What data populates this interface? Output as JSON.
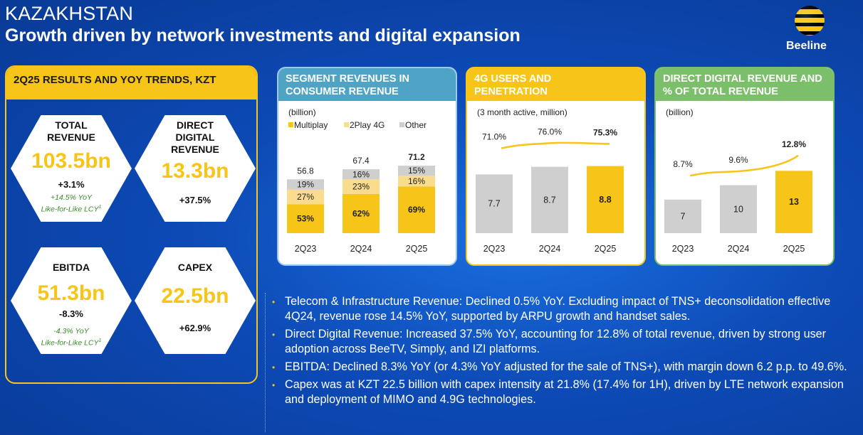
{
  "header": {
    "country": "KAZAKHSTAN",
    "title": "Growth driven by network investments and digital expansion",
    "logo_text": "Beeline"
  },
  "kpi_panel": {
    "title": "2Q25 RESULTS AND YOY TRENDS, KZT",
    "kpis": [
      {
        "label_l1": "TOTAL",
        "label_l2": "REVENUE",
        "label_l3": "",
        "value": "103.5bn",
        "change": "+3.1%",
        "note_l1": "+14.5% YoY",
        "note_l2": "Like-for-Like LCY",
        "note_sup": "1"
      },
      {
        "label_l1": "DIRECT",
        "label_l2": "DIGITAL",
        "label_l3": "REVENUE",
        "value": "13.3bn",
        "change": "+37.5%",
        "note_l1": "",
        "note_l2": "",
        "note_sup": ""
      },
      {
        "label_l1": "EBITDA",
        "label_l2": "",
        "label_l3": "",
        "value": "51.3bn",
        "change": "-8.3%",
        "note_l1": "-4.3% YoY",
        "note_l2": "Like-for-Like LCY",
        "note_sup": "1"
      },
      {
        "label_l1": "CAPEX",
        "label_l2": "",
        "label_l3": "",
        "value": "22.5bn",
        "change": "+62.9%",
        "note_l1": "",
        "note_l2": "",
        "note_sup": ""
      }
    ]
  },
  "colors": {
    "yellow": "#f7c517",
    "light_yellow": "#f9dc8c",
    "gray": "#cfcfcf",
    "teal": "#4fa3c4",
    "green": "#7cbf6a",
    "blue_bg": "#0d4ab6"
  },
  "chart_data": [
    {
      "type": "bar",
      "panel_title_l1": "SEGMENT REVENUES IN",
      "panel_title_l2": "CONSUMER REVENUE",
      "unit_note": "(billion)",
      "categories": [
        "2Q23",
        "2Q24",
        "2Q25"
      ],
      "totals": [
        "56.8",
        "67.4",
        "71.2"
      ],
      "total_values": [
        56.8,
        67.4,
        71.2
      ],
      "series": [
        {
          "name": "Multiplay",
          "values": [
            53,
            62,
            69
          ],
          "labels": [
            "53%",
            "62%",
            "69%"
          ],
          "color": "#f7c517"
        },
        {
          "name": "2Play 4G",
          "values": [
            27,
            23,
            16
          ],
          "labels": [
            "27%",
            "23%",
            "16%"
          ],
          "color": "#f9dc8c"
        },
        {
          "name": "Other",
          "values": [
            19,
            16,
            15
          ],
          "labels": [
            "19%",
            "16%",
            "15%"
          ],
          "color": "#cfcfcf"
        }
      ]
    },
    {
      "type": "bar",
      "panel_title_l1": "4G USERS AND",
      "panel_title_l2": "PENETRATION",
      "unit_note": "(3 month active, million)",
      "categories": [
        "2Q23",
        "2Q24",
        "2Q25"
      ],
      "values": [
        7.7,
        8.7,
        8.8
      ],
      "value_labels": [
        "7.7",
        "8.7",
        "8.8"
      ],
      "line_values": [
        71.0,
        76.0,
        75.3
      ],
      "line_labels": [
        "71.0%",
        "76.0%",
        "75.3%"
      ]
    },
    {
      "type": "bar",
      "panel_title_l1": "DIRECT DIGITAL REVENUE AND",
      "panel_title_l2": "% OF TOTAL REVENUE",
      "unit_note": "(billion)",
      "categories": [
        "2Q23",
        "2Q24",
        "2Q25"
      ],
      "values": [
        7,
        10,
        13
      ],
      "value_labels": [
        "7",
        "10",
        "13"
      ],
      "line_values": [
        8.7,
        9.6,
        12.8
      ],
      "line_labels": [
        "8.7%",
        "9.6%",
        "12.8%"
      ]
    }
  ],
  "bullets": [
    {
      "bold": "Telecom & Infrastructure Revenue",
      "text": ": Declined 0.5% YoY. Excluding impact of TNS+ deconsolidation effective 4Q24, revenue rose 14.5% YoY, supported by ARPU growth and handset sales."
    },
    {
      "bold": "Direct Digital Revenue",
      "text": ": Increased 37.5% YoY, accounting for 12.8% of total revenue, driven by strong user adoption across BeeTV, Simply, and IZI platforms."
    },
    {
      "bold": "EBITDA",
      "text": ": Declined 8.3% YoY (or 4.3% YoY adjusted for the sale of TNS+), with margin down 6.2 p.p. to 49.6%."
    },
    {
      "bold": "Capex",
      "text": " was at KZT 22.5 billion with capex intensity at 21.8% (17.4% for 1H), driven by LTE network expansion and deployment of MIMO and 4.9G technologies."
    }
  ]
}
